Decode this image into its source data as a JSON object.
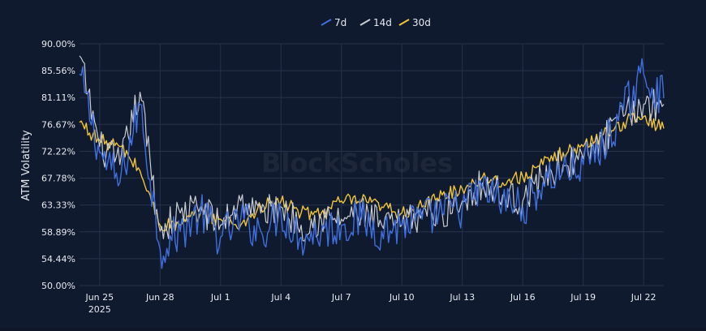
{
  "watermark": "BlockScholes",
  "colors": {
    "background": "#101a2e",
    "grid": "#26324a",
    "text": "#e6e9ef",
    "series_7d": "#3f6fe0",
    "series_14d": "#c9ccd3",
    "series_30d": "#f0c43a"
  },
  "chart_data": {
    "type": "line",
    "title": "",
    "xlabel": "",
    "ylabel": "ATM Volatility",
    "legend_position": "top-center",
    "grid": true,
    "x_start": "2025-06-24",
    "x_end": "2025-07-23",
    "ylim": [
      0.5,
      0.9
    ],
    "y_ticks": [
      "90.00%",
      "85.56%",
      "81.11%",
      "76.67%",
      "72.22%",
      "67.78%",
      "63.33%",
      "58.89%",
      "54.44%",
      "50.00%"
    ],
    "y_tick_values": [
      0.9,
      0.8556,
      0.8111,
      0.7667,
      0.7222,
      0.6778,
      0.6333,
      0.5889,
      0.5444,
      0.5
    ],
    "x_ticks": [
      {
        "date": "2025-06-25",
        "label": "Jun 25",
        "sublabel": "2025"
      },
      {
        "date": "2025-06-28",
        "label": "Jun 28",
        "sublabel": ""
      },
      {
        "date": "2025-07-01",
        "label": "Jul 1",
        "sublabel": ""
      },
      {
        "date": "2025-07-04",
        "label": "Jul 4",
        "sublabel": ""
      },
      {
        "date": "2025-07-07",
        "label": "Jul 7",
        "sublabel": ""
      },
      {
        "date": "2025-07-10",
        "label": "Jul 10",
        "sublabel": ""
      },
      {
        "date": "2025-07-13",
        "label": "Jul 13",
        "sublabel": ""
      },
      {
        "date": "2025-07-16",
        "label": "Jul 16",
        "sublabel": ""
      },
      {
        "date": "2025-07-19",
        "label": "Jul 19",
        "sublabel": ""
      },
      {
        "date": "2025-07-22",
        "label": "Jul 22",
        "sublabel": ""
      }
    ],
    "series": [
      {
        "name": "7d",
        "x": [
          "2025-06-24",
          "2025-06-25",
          "2025-06-26",
          "2025-06-27",
          "2025-06-28",
          "2025-06-29",
          "2025-06-30",
          "2025-07-01",
          "2025-07-02",
          "2025-07-03",
          "2025-07-04",
          "2025-07-05",
          "2025-07-06",
          "2025-07-07",
          "2025-07-08",
          "2025-07-09",
          "2025-07-10",
          "2025-07-11",
          "2025-07-12",
          "2025-07-13",
          "2025-07-14",
          "2025-07-15",
          "2025-07-16",
          "2025-07-17",
          "2025-07-18",
          "2025-07-19",
          "2025-07-20",
          "2025-07-21",
          "2025-07-22",
          "2025-07-23"
        ],
        "y": [
          0.85,
          0.72,
          0.67,
          0.8,
          0.56,
          0.59,
          0.62,
          0.58,
          0.61,
          0.59,
          0.62,
          0.58,
          0.59,
          0.6,
          0.61,
          0.59,
          0.6,
          0.61,
          0.62,
          0.63,
          0.66,
          0.64,
          0.63,
          0.67,
          0.69,
          0.7,
          0.73,
          0.79,
          0.85,
          0.81
        ]
      },
      {
        "name": "14d",
        "x": [
          "2025-06-24",
          "2025-06-25",
          "2025-06-26",
          "2025-06-27",
          "2025-06-28",
          "2025-06-29",
          "2025-06-30",
          "2025-07-01",
          "2025-07-02",
          "2025-07-03",
          "2025-07-04",
          "2025-07-05",
          "2025-07-06",
          "2025-07-07",
          "2025-07-08",
          "2025-07-09",
          "2025-07-10",
          "2025-07-11",
          "2025-07-12",
          "2025-07-13",
          "2025-07-14",
          "2025-07-15",
          "2025-07-16",
          "2025-07-17",
          "2025-07-18",
          "2025-07-19",
          "2025-07-20",
          "2025-07-21",
          "2025-07-22",
          "2025-07-23"
        ],
        "y": [
          0.88,
          0.73,
          0.7,
          0.82,
          0.59,
          0.62,
          0.63,
          0.6,
          0.64,
          0.62,
          0.63,
          0.6,
          0.61,
          0.61,
          0.62,
          0.6,
          0.6,
          0.62,
          0.62,
          0.64,
          0.67,
          0.65,
          0.64,
          0.68,
          0.7,
          0.71,
          0.74,
          0.78,
          0.8,
          0.8
        ]
      },
      {
        "name": "30d",
        "x": [
          "2025-06-24",
          "2025-06-25",
          "2025-06-26",
          "2025-06-27",
          "2025-06-28",
          "2025-06-29",
          "2025-06-30",
          "2025-07-01",
          "2025-07-02",
          "2025-07-03",
          "2025-07-04",
          "2025-07-05",
          "2025-07-06",
          "2025-07-07",
          "2025-07-08",
          "2025-07-09",
          "2025-07-10",
          "2025-07-11",
          "2025-07-12",
          "2025-07-13",
          "2025-07-14",
          "2025-07-15",
          "2025-07-16",
          "2025-07-17",
          "2025-07-18",
          "2025-07-19",
          "2025-07-20",
          "2025-07-21",
          "2025-07-22",
          "2025-07-23"
        ],
        "y": [
          0.77,
          0.74,
          0.73,
          0.69,
          0.6,
          0.6,
          0.62,
          0.61,
          0.6,
          0.63,
          0.64,
          0.62,
          0.62,
          0.64,
          0.64,
          0.63,
          0.62,
          0.63,
          0.65,
          0.66,
          0.68,
          0.67,
          0.68,
          0.7,
          0.72,
          0.73,
          0.75,
          0.77,
          0.78,
          0.76
        ]
      }
    ]
  }
}
